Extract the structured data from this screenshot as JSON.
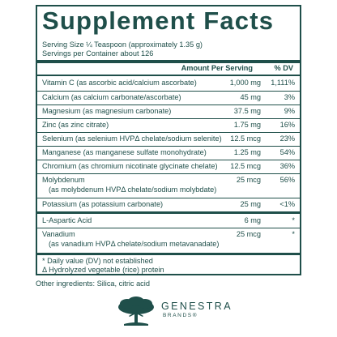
{
  "title": "Supplement Facts",
  "serving_size": "Serving Size ¼ Teaspoon (approximately 1.35 g)",
  "servings_per_container": "Servings per Container about 126",
  "header": {
    "amount": "Amount Per Serving",
    "dv": "% DV"
  },
  "rows": [
    {
      "name": "Vitamin C (as ascorbic acid/calcium ascorbate)",
      "amount": "1,000 mg",
      "dv": "1,111%"
    },
    {
      "name": "Calcium (as calcium carbonate/ascorbate)",
      "amount": "45 mg",
      "dv": "3%"
    },
    {
      "name": "Magnesium (as magnesium carbonate)",
      "amount": "37.5 mg",
      "dv": "9%"
    },
    {
      "name": "Zinc (as zinc citrate)",
      "amount": "1.75 mg",
      "dv": "16%"
    },
    {
      "name": "Selenium (as selenium HVPΔ chelate/sodium selenite)",
      "amount": "12.5 mcg",
      "dv": "23%"
    },
    {
      "name": "Manganese (as manganese sulfate monohydrate)",
      "amount": "1.25 mg",
      "dv": "54%"
    },
    {
      "name": "Chromium (as chromium nicotinate glycinate chelate)",
      "amount": "12.5 mcg",
      "dv": "36%"
    },
    {
      "name": "Molybdenum",
      "sub": "(as molybdenum HVPΔ chelate/sodium molybdate)",
      "amount": "25 mcg",
      "dv": "56%"
    },
    {
      "name": "Potassium (as potassium carbonate)",
      "amount": "25 mg",
      "dv": "<1%"
    },
    {
      "name": "L-Aspartic Acid",
      "amount": "6 mg",
      "dv": "*"
    },
    {
      "name": "Vanadium",
      "sub": "(as vanadium HVPΔ chelate/sodium metavanadate)",
      "amount": "25 mcg",
      "dv": "*"
    }
  ],
  "footnotes": [
    "* Daily value (DV) not established",
    "Δ Hydrolyzed vegetable (rice) protein"
  ],
  "other_ingredients": "Other ingredients: Silica, citric acid",
  "brand": {
    "name": "GENESTRA",
    "sub": "BRANDS®",
    "color": "#1f4f4a",
    "icon": "tree-icon"
  }
}
